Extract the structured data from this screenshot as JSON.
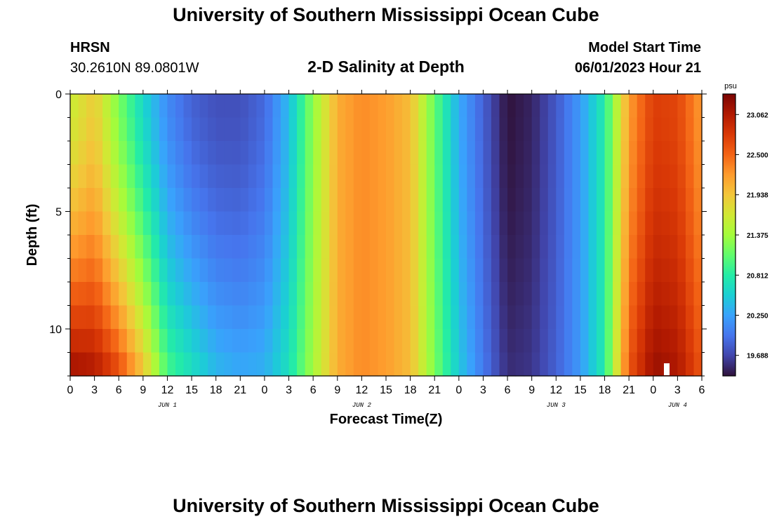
{
  "header": {
    "title": "University of Southern Mississippi Ocean Cube",
    "station": "HRSN",
    "coords": "30.2610N  89.0801W",
    "subtitle": "2-D Salinity at Depth",
    "model_start_label": "Model Start Time",
    "model_start_value": "06/01/2023 Hour 21"
  },
  "footer": {
    "title": "University of Southern Mississippi Ocean Cube"
  },
  "chart_data": {
    "type": "heatmap",
    "title": "2-D Salinity at Depth",
    "xlabel": "Forecast Time(Z)",
    "ylabel": "Depth (ft)",
    "x_ticks": [
      "0",
      "3",
      "6",
      "9",
      "12",
      "15",
      "18",
      "21",
      "0",
      "3",
      "6",
      "9",
      "12",
      "15",
      "18",
      "21",
      "0",
      "3",
      "6",
      "9",
      "12",
      "15",
      "18",
      "21",
      "0",
      "3",
      "6"
    ],
    "x_ticks_hours": [
      0,
      3,
      6,
      9,
      12,
      15,
      18,
      21,
      24,
      27,
      30,
      33,
      36,
      39,
      42,
      45,
      48,
      51,
      54,
      57,
      60,
      63,
      66,
      69,
      72,
      75,
      78
    ],
    "day_labels": [
      {
        "label": "JUN 1",
        "hour": 12
      },
      {
        "label": "JUN 2",
        "hour": 36
      },
      {
        "label": "JUN 3",
        "hour": 60
      },
      {
        "label": "JUN 4",
        "hour": 75
      }
    ],
    "xlim": [
      0,
      78
    ],
    "y_ticks": [
      "0",
      "5",
      "10"
    ],
    "y_tick_values": [
      0,
      5,
      10
    ],
    "ylim": [
      0,
      12
    ],
    "y_inverted": true,
    "colorbar": {
      "unit": "psu",
      "ticks": [
        "23.062",
        "22.500",
        "21.938",
        "21.375",
        "20.812",
        "20.250",
        "19.688"
      ],
      "tick_values": [
        23.062,
        22.5,
        21.938,
        21.375,
        20.812,
        20.25,
        19.688
      ],
      "range": [
        19.4,
        23.35
      ]
    },
    "surface_profile": {
      "hours": [
        0,
        3,
        6,
        9,
        12,
        15,
        18,
        21,
        24,
        27,
        30,
        33,
        36,
        39,
        42,
        45,
        48,
        51,
        54,
        57,
        60,
        63,
        66,
        69,
        72,
        75,
        78
      ],
      "salinity": [
        21.6,
        21.9,
        21.2,
        20.6,
        20.1,
        19.85,
        19.75,
        19.75,
        19.9,
        20.4,
        21.3,
        22.1,
        22.3,
        22.2,
        22.0,
        21.1,
        20.3,
        19.85,
        19.4,
        19.5,
        19.8,
        20.2,
        20.8,
        22.2,
        22.75,
        22.7,
        22.2
      ]
    },
    "bottom_profile": {
      "hours": [
        0,
        3,
        6,
        9,
        12,
        15,
        18,
        21,
        24,
        27,
        30,
        33,
        36,
        39,
        42,
        45,
        48,
        51,
        54,
        57,
        60,
        63,
        66,
        69,
        72,
        75,
        78
      ],
      "salinity": [
        23.2,
        23.1,
        22.7,
        22.0,
        21.0,
        20.7,
        20.4,
        20.3,
        20.35,
        20.7,
        21.4,
        22.1,
        22.3,
        22.2,
        22.0,
        21.2,
        20.5,
        20.0,
        19.55,
        19.6,
        19.85,
        20.2,
        20.8,
        22.6,
        23.2,
        23.1,
        22.6
      ]
    },
    "colors": {
      "turbo_stops": [
        "#30123b",
        "#4145ab",
        "#4675ed",
        "#39a2fc",
        "#1bcfd4",
        "#24eca6",
        "#61fc6c",
        "#a4fc3b",
        "#d1e834",
        "#f3c63a",
        "#fe9b2d",
        "#f36315",
        "#d93806",
        "#b11901",
        "#7a0402"
      ]
    }
  }
}
